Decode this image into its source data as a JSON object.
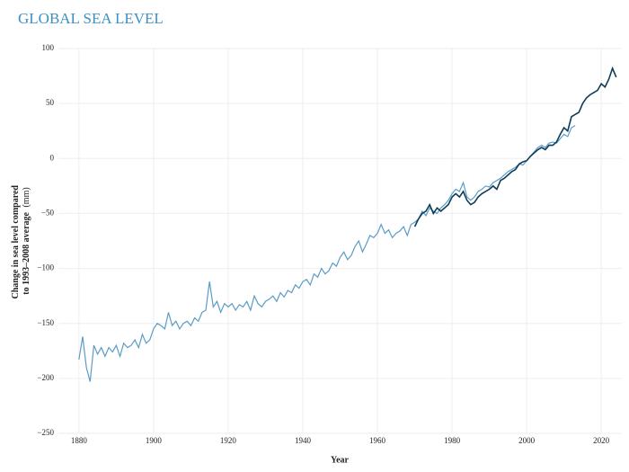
{
  "chart_data": {
    "type": "line",
    "title": "GLOBAL SEA LEVEL",
    "xlabel": "Year",
    "ylabel_lines": [
      "Change in sea level compared",
      "to 1993–2008 average"
    ],
    "ylabel_unit": "(mm)",
    "xlim": [
      1874.5,
      2025.5
    ],
    "ylim": [
      -250,
      100
    ],
    "xticks": [
      1880,
      1900,
      1920,
      1940,
      1960,
      1980,
      2000,
      2020
    ],
    "yticks": [
      {
        "value": -250,
        "label": "−250"
      },
      {
        "value": -200,
        "label": "−200"
      },
      {
        "value": -150,
        "label": "−150"
      },
      {
        "value": -100,
        "label": "−100"
      },
      {
        "value": -50,
        "label": "−50"
      },
      0,
      50,
      100
    ],
    "grid": true,
    "series": [
      {
        "color": "#5b9cc6",
        "x": [
          1880,
          1881,
          1882,
          1883,
          1884,
          1885,
          1886,
          1887,
          1888,
          1889,
          1890,
          1891,
          1892,
          1893,
          1894,
          1895,
          1896,
          1897,
          1898,
          1899,
          1900,
          1901,
          1902,
          1903,
          1904,
          1905,
          1906,
          1907,
          1908,
          1909,
          1910,
          1911,
          1912,
          1913,
          1914,
          1915,
          1916,
          1917,
          1918,
          1919,
          1920,
          1921,
          1922,
          1923,
          1924,
          1925,
          1926,
          1927,
          1928,
          1929,
          1930,
          1931,
          1932,
          1933,
          1934,
          1935,
          1936,
          1937,
          1938,
          1939,
          1940,
          1941,
          1942,
          1943,
          1944,
          1945,
          1946,
          1947,
          1948,
          1949,
          1950,
          1951,
          1952,
          1953,
          1954,
          1955,
          1956,
          1957,
          1958,
          1959,
          1960,
          1961,
          1962,
          1963,
          1964,
          1965,
          1966,
          1967,
          1968,
          1969,
          1970,
          1971,
          1972,
          1973,
          1974,
          1975,
          1976,
          1977,
          1978,
          1979,
          1980,
          1981,
          1982,
          1983,
          1984,
          1985,
          1986,
          1987,
          1988,
          1989,
          1990,
          1991,
          1992,
          1993,
          1994,
          1995,
          1996,
          1997,
          1998,
          1999,
          2000,
          2001,
          2002,
          2003,
          2004,
          2005,
          2006,
          2007,
          2008,
          2009,
          2010,
          2011,
          2012,
          2013
        ],
        "values": [
          -183,
          -162,
          -190,
          -203,
          -170,
          -178,
          -172,
          -180,
          -172,
          -176,
          -170,
          -180,
          -168,
          -172,
          -170,
          -165,
          -172,
          -160,
          -168,
          -165,
          -155,
          -150,
          -152,
          -155,
          -140,
          -152,
          -148,
          -155,
          -150,
          -148,
          -152,
          -145,
          -148,
          -140,
          -138,
          -112,
          -135,
          -130,
          -140,
          -132,
          -135,
          -132,
          -138,
          -133,
          -135,
          -130,
          -138,
          -125,
          -132,
          -135,
          -130,
          -128,
          -125,
          -130,
          -122,
          -126,
          -120,
          -122,
          -115,
          -118,
          -112,
          -110,
          -115,
          -105,
          -108,
          -100,
          -105,
          -102,
          -95,
          -98,
          -90,
          -85,
          -92,
          -88,
          -80,
          -75,
          -85,
          -78,
          -70,
          -72,
          -68,
          -60,
          -68,
          -65,
          -72,
          -68,
          -66,
          -62,
          -70,
          -60,
          -58,
          -55,
          -48,
          -52,
          -45,
          -48,
          -50,
          -45,
          -42,
          -38,
          -32,
          -28,
          -30,
          -22,
          -35,
          -38,
          -35,
          -30,
          -28,
          -25,
          -26,
          -22,
          -20,
          -18,
          -15,
          -12,
          -10,
          -8,
          -5,
          -6,
          -2,
          2,
          6,
          10,
          12,
          10,
          14,
          15,
          14,
          18,
          22,
          20,
          28,
          30
        ]
      },
      {
        "color": "#0d3d56",
        "x": [
          1970,
          1971,
          1972,
          1973,
          1974,
          1975,
          1976,
          1977,
          1978,
          1979,
          1980,
          1981,
          1982,
          1983,
          1984,
          1985,
          1986,
          1987,
          1988,
          1989,
          1990,
          1991,
          1992,
          1993,
          1994,
          1995,
          1996,
          1997,
          1998,
          1999,
          2000,
          2001,
          2002,
          2003,
          2004,
          2005,
          2006,
          2007,
          2008,
          2009,
          2010,
          2011,
          2012,
          2013,
          2014,
          2015,
          2016,
          2017,
          2018,
          2019,
          2020,
          2021,
          2022,
          2023,
          2024
        ],
        "values": [
          -62,
          -55,
          -50,
          -48,
          -42,
          -50,
          -45,
          -48,
          -45,
          -42,
          -35,
          -32,
          -35,
          -30,
          -38,
          -42,
          -40,
          -35,
          -32,
          -30,
          -28,
          -25,
          -28,
          -20,
          -18,
          -15,
          -12,
          -10,
          -5,
          -3,
          -2,
          2,
          5,
          8,
          10,
          8,
          12,
          12,
          15,
          22,
          28,
          25,
          38,
          40,
          42,
          50,
          55,
          58,
          60,
          62,
          68,
          65,
          72,
          82,
          74
        ]
      }
    ]
  }
}
